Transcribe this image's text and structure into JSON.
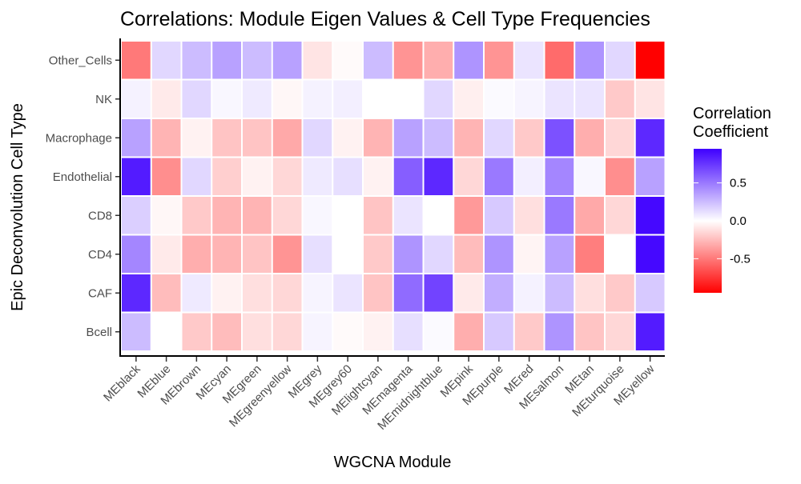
{
  "chart_data": {
    "type": "heatmap",
    "title": "Correlations: Module Eigen Values & Cell Type Frequencies",
    "xlabel": "WGCNA Module",
    "ylabel": "Epic Deconvolution Cell Type",
    "x_categories": [
      "MEblack",
      "MEblue",
      "MEbrown",
      "MEcyan",
      "MEgreen",
      "MEgreenyellow",
      "MEgrey",
      "MEgrey60",
      "MElightcyan",
      "MEmagenta",
      "MEmidnightblue",
      "MEpink",
      "MEpurple",
      "MEred",
      "MEsalmon",
      "MEtan",
      "MEturquoise",
      "MEyellow"
    ],
    "y_categories": [
      "Other_Cells",
      "NK",
      "Macrophage",
      "Endothelial",
      "CD8",
      "CD4",
      "CAF",
      "Bcell"
    ],
    "values": [
      [
        -0.5,
        0.15,
        0.25,
        0.35,
        0.25,
        0.35,
        -0.1,
        -0.02,
        0.25,
        -0.4,
        -0.3,
        0.4,
        -0.4,
        0.1,
        -0.55,
        0.4,
        0.15,
        -0.95
      ],
      [
        0.05,
        -0.08,
        0.15,
        0.03,
        0.08,
        -0.03,
        0.05,
        0.06,
        0.0,
        0.0,
        0.15,
        -0.06,
        0.02,
        0.04,
        0.1,
        0.1,
        -0.2,
        -0.1
      ],
      [
        0.35,
        -0.28,
        -0.05,
        -0.22,
        -0.22,
        -0.32,
        0.15,
        -0.05,
        -0.28,
        0.35,
        0.25,
        -0.28,
        0.15,
        -0.2,
        0.65,
        -0.3,
        -0.15,
        0.8
      ],
      [
        0.85,
        -0.42,
        0.15,
        -0.18,
        -0.05,
        -0.15,
        0.08,
        0.12,
        -0.05,
        0.6,
        0.8,
        -0.15,
        0.5,
        0.06,
        0.45,
        0.03,
        -0.42,
        0.35
      ],
      [
        0.18,
        -0.03,
        -0.2,
        -0.28,
        -0.28,
        -0.15,
        0.03,
        0.0,
        -0.22,
        0.1,
        0.0,
        -0.38,
        0.2,
        -0.12,
        0.5,
        -0.32,
        -0.15,
        0.92
      ],
      [
        0.45,
        -0.08,
        -0.3,
        -0.28,
        -0.22,
        -0.4,
        0.12,
        0.0,
        -0.2,
        0.4,
        0.15,
        -0.25,
        0.4,
        -0.04,
        0.35,
        -0.48,
        0.0,
        0.92
      ],
      [
        0.8,
        -0.25,
        0.08,
        -0.05,
        -0.12,
        -0.15,
        0.04,
        0.1,
        -0.22,
        0.55,
        0.7,
        -0.08,
        0.3,
        0.05,
        0.25,
        -0.12,
        -0.2,
        0.2
      ],
      [
        0.25,
        0.0,
        -0.2,
        -0.25,
        -0.12,
        -0.15,
        0.04,
        -0.02,
        -0.05,
        0.12,
        0.02,
        -0.3,
        0.2,
        -0.2,
        0.4,
        -0.22,
        -0.15,
        0.85
      ]
    ],
    "legend": {
      "title_lines": [
        "Correlation",
        "Coefficient"
      ],
      "ticks": [
        0.5,
        0.0,
        -0.5
      ],
      "tick_labels": [
        "0.5",
        "0.0",
        "-0.5"
      ],
      "range": [
        -0.95,
        0.95
      ],
      "colors": {
        "low": "#ff0000",
        "mid": "#ffffff",
        "high": "#3f00ff"
      },
      "placement": "right"
    },
    "grid": false
  }
}
